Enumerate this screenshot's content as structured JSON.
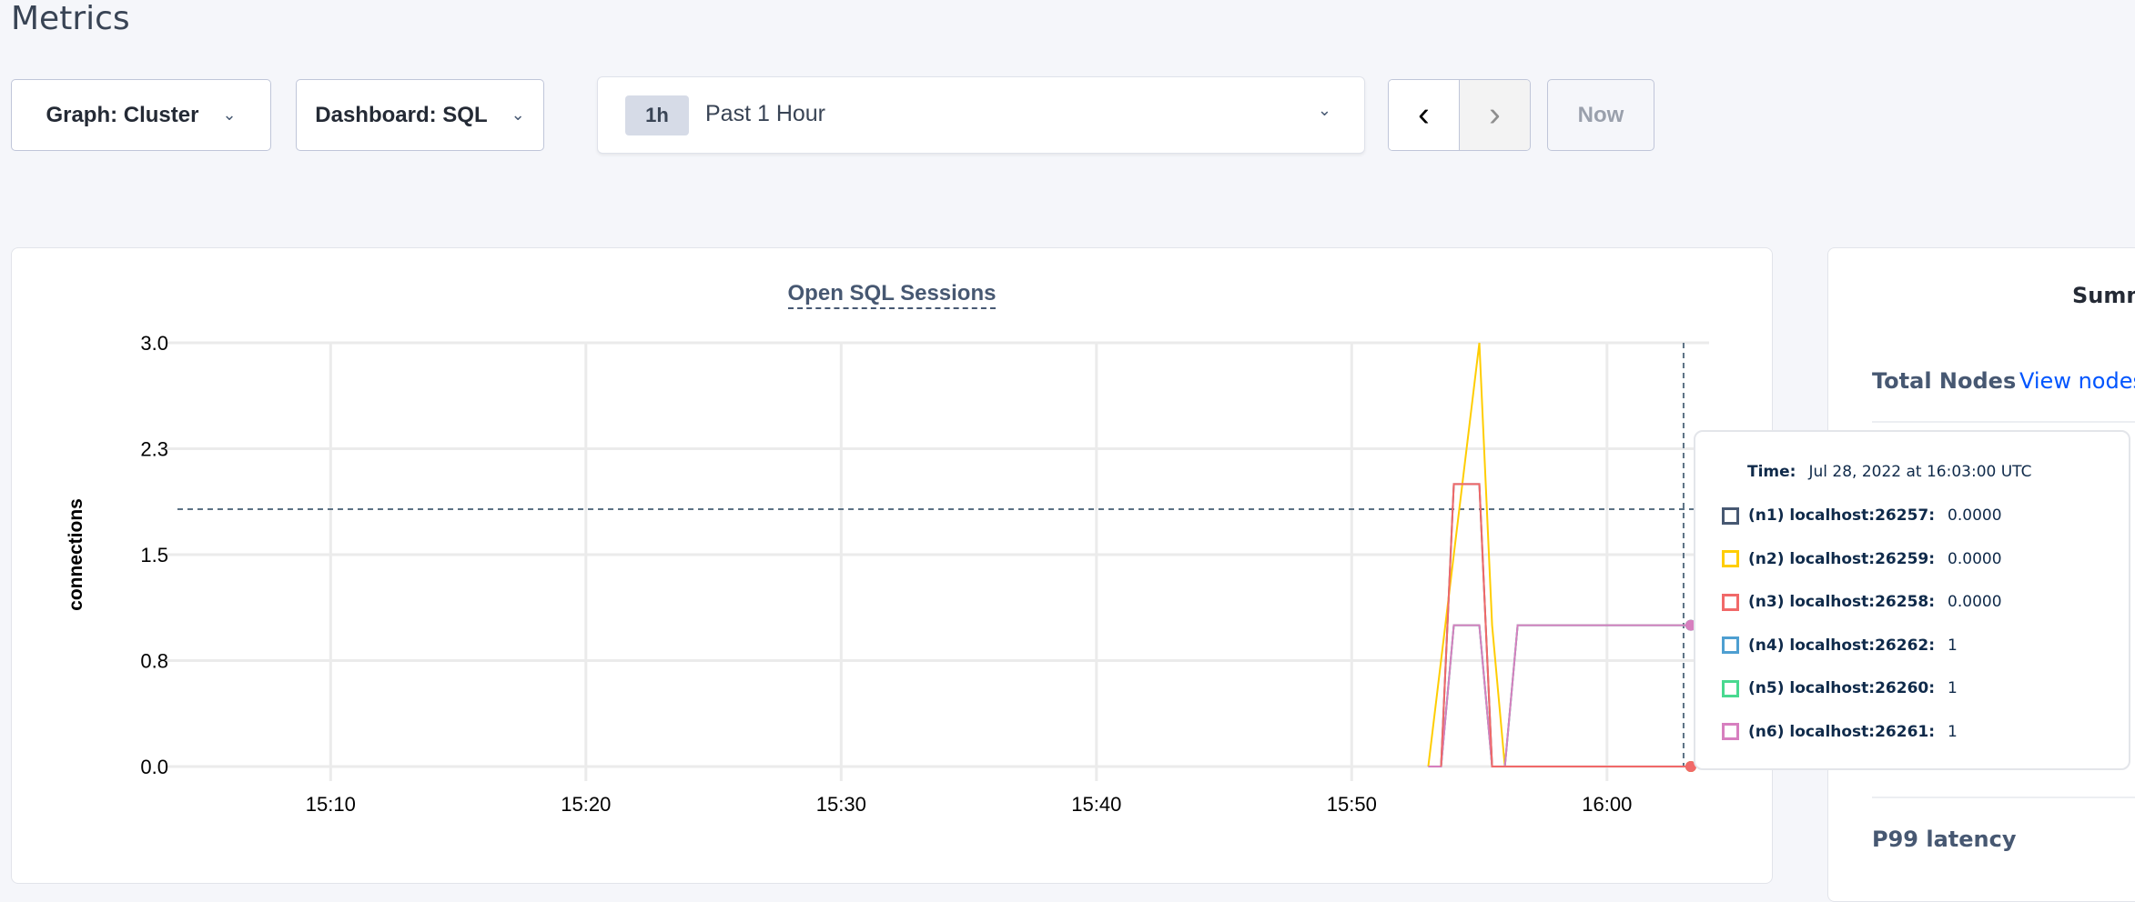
{
  "header": {
    "title": "Metrics"
  },
  "controls": {
    "graph_label": "Graph: Cluster",
    "dashboard_label": "Dashboard: SQL",
    "time_pill": "1h",
    "time_label": "Past 1 Hour",
    "now_label": "Now",
    "chevron": "⌄",
    "prev_icon": "‹",
    "next_icon": "›"
  },
  "chart_data": {
    "type": "line",
    "title": "Open SQL Sessions",
    "ylabel": "connections",
    "xlabel": "",
    "ylim": [
      0,
      3
    ],
    "xlim": [
      "15:04",
      "16:04"
    ],
    "yticks": [
      0,
      0.75,
      1.5,
      2.25,
      3
    ],
    "ytick_labels": [
      "0.0",
      "0.8",
      "1.5",
      "2.3",
      "3.0"
    ],
    "xticks": [
      "15:10",
      "15:20",
      "15:30",
      "15:40",
      "15:50",
      "16:00"
    ],
    "grid": true,
    "hover_time": "16:03",
    "series": [
      {
        "name": "(n1) localhost:26257",
        "color": "#475872",
        "points": [
          [
            "15:53:30",
            0
          ],
          [
            "15:54:00",
            2
          ],
          [
            "15:55:00",
            2
          ],
          [
            "15:55:30",
            0
          ],
          [
            "16:03:30",
            0
          ]
        ]
      },
      {
        "name": "(n2) localhost:26259",
        "color": "#ffcd02",
        "points": [
          [
            "15:53:00",
            0
          ],
          [
            "15:55:00",
            3
          ],
          [
            "15:55:30",
            1
          ],
          [
            "15:56:00",
            0
          ],
          [
            "16:03:30",
            0
          ]
        ]
      },
      {
        "name": "(n4) localhost:26262",
        "color": "#4e9fd1",
        "points": [
          [
            "15:53:00",
            0
          ],
          [
            "15:53:30",
            0
          ],
          [
            "15:54:00",
            1
          ],
          [
            "15:55:00",
            1
          ],
          [
            "15:55:30",
            0
          ],
          [
            "15:56:00",
            0
          ],
          [
            "15:56:30",
            1
          ],
          [
            "16:03:30",
            1
          ]
        ]
      },
      {
        "name": "(n5) localhost:26260",
        "color": "#49d990",
        "points": [
          [
            "15:53:00",
            0
          ],
          [
            "15:53:30",
            0
          ],
          [
            "15:54:00",
            1
          ],
          [
            "15:55:00",
            1
          ],
          [
            "15:55:30",
            0
          ],
          [
            "15:56:00",
            0
          ],
          [
            "15:56:30",
            1
          ],
          [
            "16:03:30",
            1
          ]
        ]
      },
      {
        "name": "(n6) localhost:26261",
        "color": "#d77fbf",
        "points": [
          [
            "15:53:00",
            0
          ],
          [
            "15:53:30",
            0
          ],
          [
            "15:54:00",
            1
          ],
          [
            "15:55:00",
            1
          ],
          [
            "15:55:30",
            0
          ],
          [
            "15:56:00",
            0
          ],
          [
            "15:56:30",
            1
          ],
          [
            "16:03:30",
            1
          ]
        ]
      },
      {
        "name": "(n3) localhost:26258",
        "color": "#f16969",
        "points": [
          [
            "15:53:30",
            0
          ],
          [
            "15:54:00",
            2
          ],
          [
            "15:55:00",
            2
          ],
          [
            "15:55:30",
            0
          ],
          [
            "16:03:30",
            0
          ]
        ]
      }
    ]
  },
  "tooltip": {
    "time_label": "Time:",
    "time_value": "Jul 28, 2022 at 16:03:00 UTC",
    "rows": [
      {
        "label": "(n1) localhost:26257:",
        "value": "0.0000",
        "color": "#475872"
      },
      {
        "label": "(n2) localhost:26259:",
        "value": "0.0000",
        "color": "#ffcd02"
      },
      {
        "label": "(n3) localhost:26258:",
        "value": "0.0000",
        "color": "#f16969"
      },
      {
        "label": "(n4) localhost:26262:",
        "value": "1",
        "color": "#4e9fd1"
      },
      {
        "label": "(n5) localhost:26260:",
        "value": "1",
        "color": "#49d990"
      },
      {
        "label": "(n6) localhost:26261:",
        "value": "1",
        "color": "#d77fbf"
      }
    ]
  },
  "summary": {
    "title": "Summ",
    "total_nodes_label": "Total Nodes",
    "view_nodes_link": "View nodes",
    "p99_label": "P99 latency"
  }
}
